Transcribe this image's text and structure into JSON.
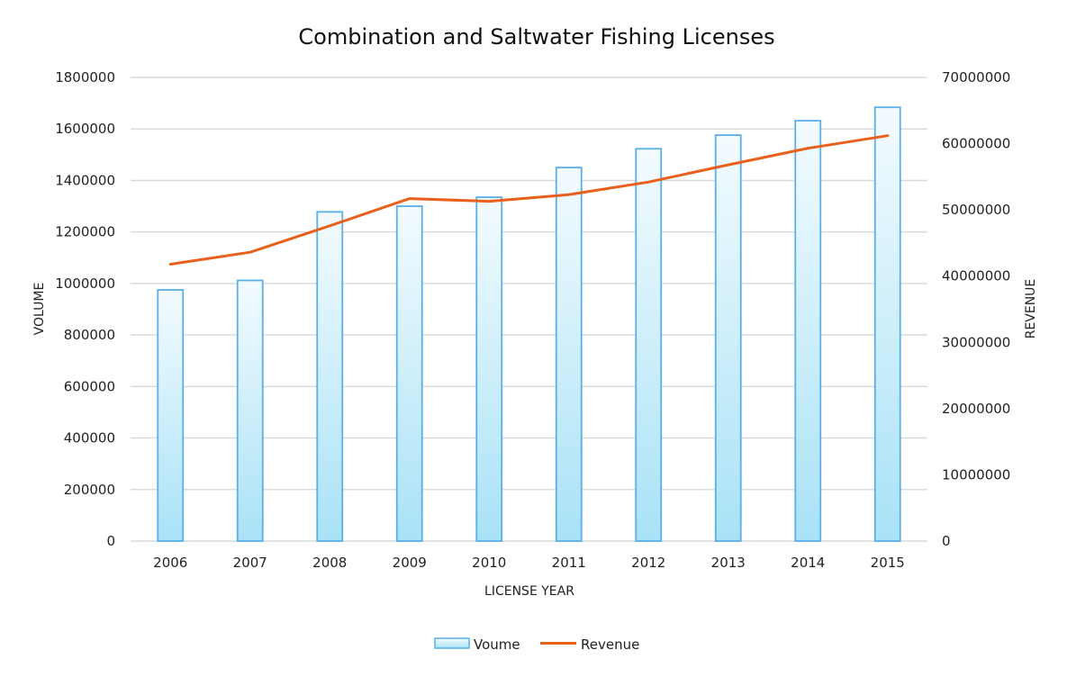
{
  "chart_data": {
    "type": "bar",
    "title": "Combination and Saltwater Fishing Licenses",
    "xlabel": "LICENSE YEAR",
    "ylabel": "VOLUME",
    "y2label": "REVENUE",
    "categories": [
      "2006",
      "2007",
      "2008",
      "2009",
      "2010",
      "2011",
      "2012",
      "2013",
      "2014",
      "2015"
    ],
    "ylim": [
      0,
      1800000
    ],
    "y2lim": [
      0,
      70000000
    ],
    "yticks": [
      "0",
      "200000",
      "400000",
      "600000",
      "800000",
      "1000000",
      "1200000",
      "1400000",
      "1600000",
      "1800000"
    ],
    "y2ticks": [
      "0",
      "10000000",
      "20000000",
      "30000000",
      "40000000",
      "50000000",
      "60000000",
      "70000000"
    ],
    "grid": true,
    "legend_position": "bottom",
    "series": [
      {
        "name": "Voume",
        "type": "bar",
        "axis": "left",
        "color": "#5aafe6",
        "values": [
          975000,
          1012000,
          1278000,
          1300000,
          1335000,
          1450000,
          1523000,
          1576000,
          1632000,
          1684000
        ]
      },
      {
        "name": "Revenue",
        "type": "line",
        "axis": "right",
        "color": "#e8601c",
        "values": [
          41800000,
          43600000,
          47600000,
          51700000,
          51300000,
          52300000,
          54200000,
          56800000,
          59300000,
          61200000
        ]
      }
    ]
  }
}
